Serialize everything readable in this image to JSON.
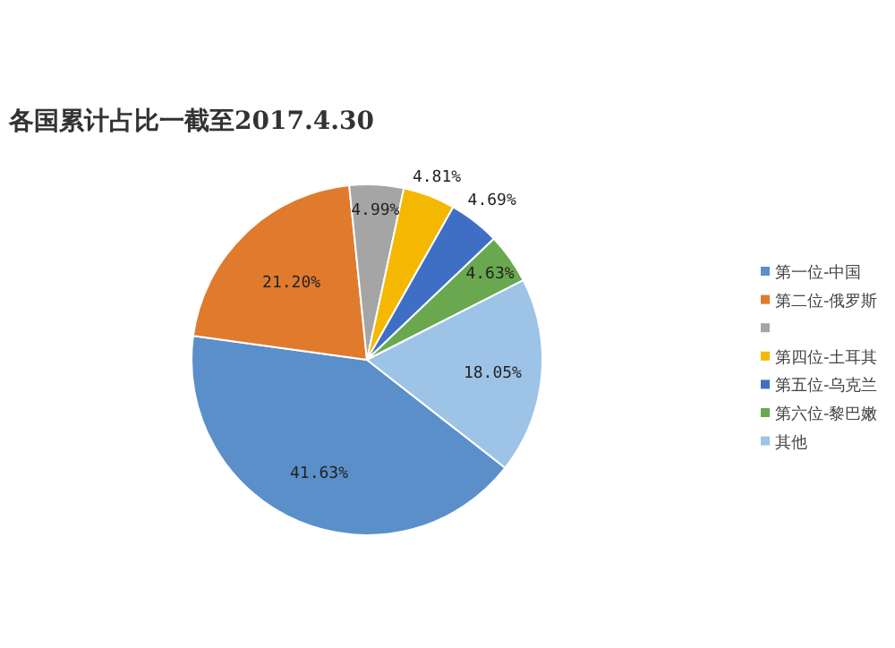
{
  "chart_data": {
    "type": "pie",
    "title": "各国累计占比一截至2017.4.30",
    "categories": [
      "第一位-中国",
      "第二位-俄罗斯",
      null,
      "第四位-土耳其",
      "第五位-乌克兰",
      "第六位-黎巴嫩",
      "其他"
    ],
    "values": [
      41.63,
      21.2,
      4.99,
      4.81,
      4.69,
      4.63,
      18.05
    ],
    "value_labels": [
      "41.63%",
      "21.20%",
      "4.99%",
      "4.81%",
      "4.69%",
      "4.63%",
      "18.05%"
    ],
    "colors": [
      "#5b8fc9",
      "#e07b2e",
      "#a5a5a5",
      "#f5b800",
      "#3f6fc4",
      "#6aa84f",
      "#9dc3e6"
    ],
    "legend": "right"
  }
}
